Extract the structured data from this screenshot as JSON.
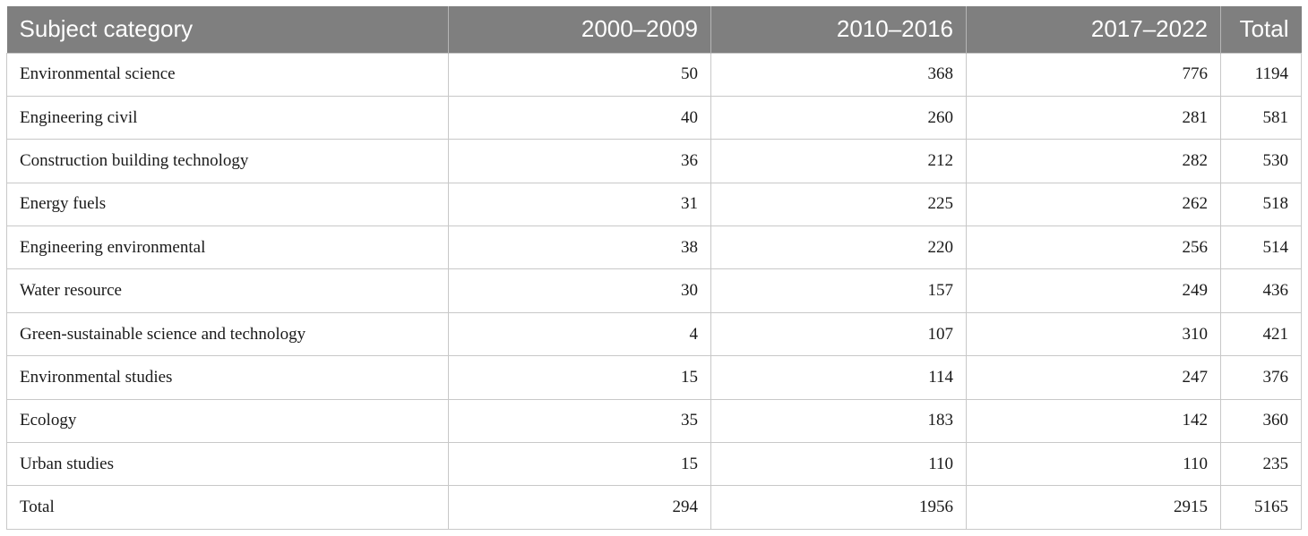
{
  "table": {
    "headers": [
      "Subject category",
      "2000–2009",
      "2010–2016",
      "2017–2022",
      "Total"
    ],
    "rows": [
      [
        "Environmental science",
        "50",
        "368",
        "776",
        "1194"
      ],
      [
        "Engineering civil",
        "40",
        "260",
        "281",
        "581"
      ],
      [
        "Construction building technology",
        "36",
        "212",
        "282",
        "530"
      ],
      [
        "Energy fuels",
        "31",
        "225",
        "262",
        "518"
      ],
      [
        "Engineering environmental",
        "38",
        "220",
        "256",
        "514"
      ],
      [
        "Water resource",
        "30",
        "157",
        "249",
        "436"
      ],
      [
        "Green-sustainable science and technology",
        "4",
        "107",
        "310",
        "421"
      ],
      [
        "Environmental studies",
        "15",
        "114",
        "247",
        "376"
      ],
      [
        "Ecology",
        "35",
        "183",
        "142",
        "360"
      ],
      [
        "Urban studies",
        "15",
        "110",
        "110",
        "235"
      ],
      [
        "Total",
        "294",
        "1956",
        "2915",
        "5165"
      ]
    ]
  },
  "colors": {
    "header_background": "#7f7f7f",
    "header_text": "#ffffff",
    "grid_line": "#c8c8c8"
  }
}
